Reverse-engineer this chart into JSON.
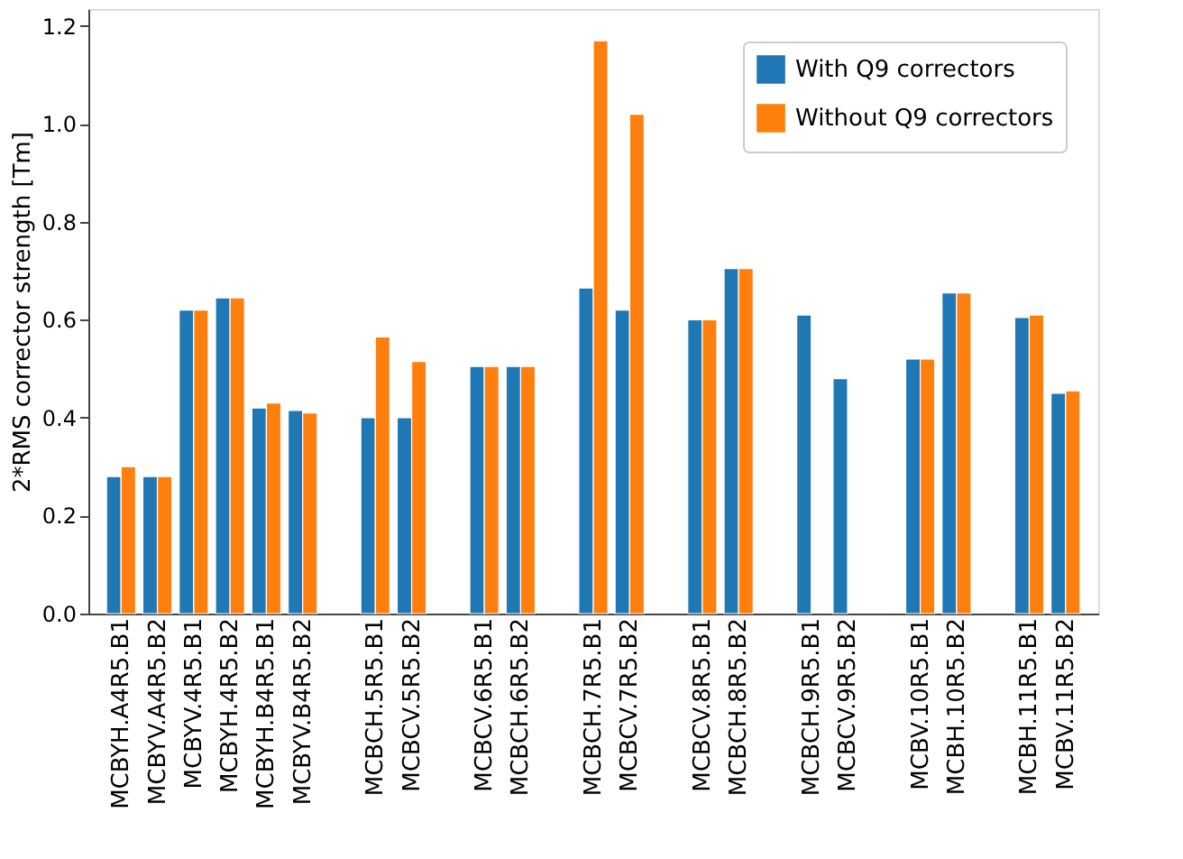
{
  "chart_data": {
    "type": "bar",
    "ylabel": "2*RMS corrector strength [Tm]",
    "categories": [
      "MCBYH.A4R5.B1",
      "MCBYV.A4R5.B2",
      "MCBYV.4R5.B1",
      "MCBYH.4R5.B2",
      "MCBYH.B4R5.B1",
      "MCBYV.B4R5.B2",
      null,
      "MCBCH.5R5.B1",
      "MCBCV.5R5.B2",
      null,
      "MCBCV.6R5.B1",
      "MCBCH.6R5.B2",
      null,
      "MCBCH.7R5.B1",
      "MCBCV.7R5.B2",
      null,
      "MCBCV.8R5.B1",
      "MCBCH.8R5.B2",
      null,
      "MCBCH.9R5.B1",
      "MCBCV.9R5.B2",
      null,
      "MCBV.10R5.B1",
      "MCBH.10R5.B2",
      null,
      "MCBH.11R5.B1",
      "MCBV.11R5.B2"
    ],
    "series": [
      {
        "name": "With Q9 correctors",
        "color": "#1f77b4",
        "values": [
          0.28,
          0.28,
          0.62,
          0.645,
          0.42,
          0.415,
          null,
          0.4,
          0.4,
          null,
          0.505,
          0.505,
          null,
          0.665,
          0.62,
          null,
          0.6,
          0.705,
          null,
          0.61,
          0.48,
          null,
          0.52,
          0.655,
          null,
          0.605,
          0.45
        ]
      },
      {
        "name": "Without Q9 correctors",
        "color": "#ff7f0e",
        "values": [
          0.3,
          0.28,
          0.62,
          0.645,
          0.43,
          0.41,
          null,
          0.565,
          0.515,
          null,
          0.505,
          0.505,
          null,
          1.17,
          1.02,
          null,
          0.6,
          0.705,
          null,
          null,
          null,
          null,
          0.52,
          0.655,
          null,
          0.61,
          0.455
        ]
      }
    ],
    "ylim": [
      0,
      1.235
    ],
    "yticks": [
      {
        "value": 0,
        "label": "0.0"
      },
      0.2,
      0.4,
      0.6,
      0.8,
      {
        "value": 1,
        "label": "1.0"
      },
      1.2
    ],
    "grid": false,
    "legend": "top right"
  }
}
